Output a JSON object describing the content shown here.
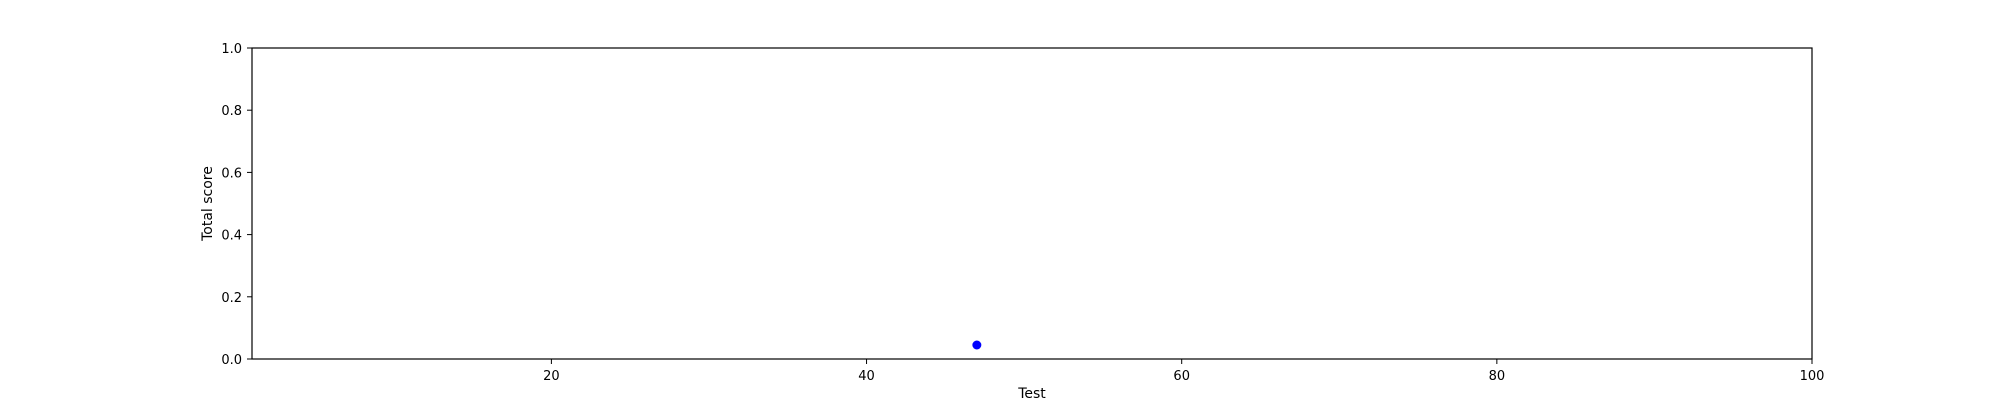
{
  "chart_data": {
    "type": "scatter",
    "title": "",
    "xlabel": "Test",
    "ylabel": "Total score",
    "xlim": [
      1,
      100
    ],
    "ylim": [
      0.0,
      1.0
    ],
    "xticks": [
      20,
      40,
      60,
      80,
      100
    ],
    "xtick_labels": [
      "20",
      "40",
      "60",
      "80",
      "100"
    ],
    "yticks": [
      0.0,
      0.2,
      0.4,
      0.6,
      0.8,
      1.0
    ],
    "ytick_labels": [
      "0.0",
      "0.2",
      "0.4",
      "0.6",
      "0.8",
      "1.0"
    ],
    "grid": false,
    "series": [
      {
        "color": "#0000ff",
        "points": [
          {
            "x": 47,
            "y": 0.045
          }
        ]
      }
    ]
  }
}
